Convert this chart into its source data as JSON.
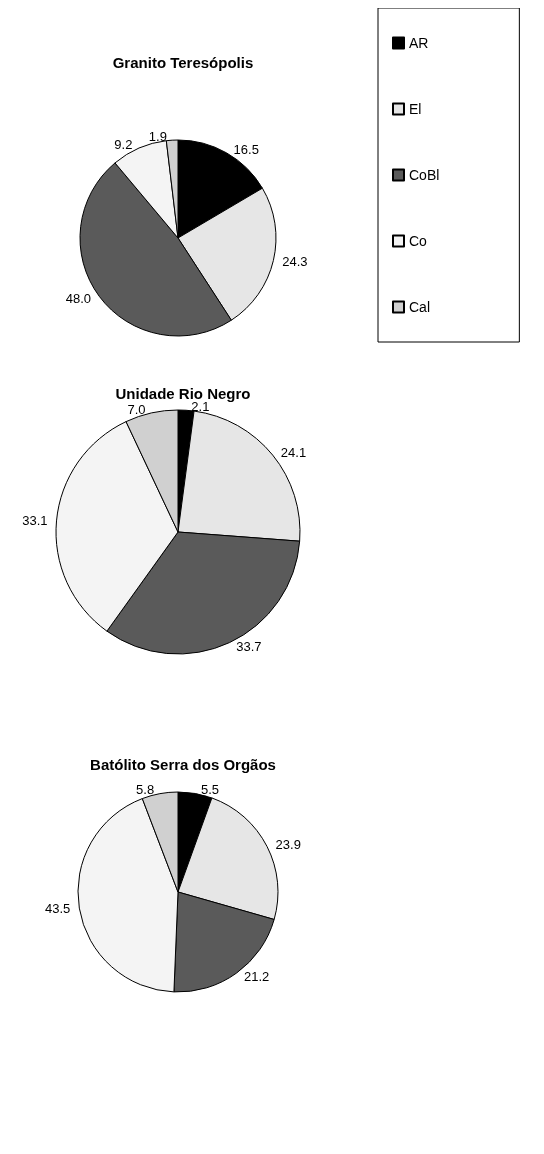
{
  "chart_data": [
    {
      "type": "pie",
      "title": "Granito Teresópolis",
      "categories": [
        "AR",
        "El",
        "CoBl",
        "Co",
        "Cal"
      ],
      "values": [
        16.5,
        24.3,
        48.0,
        9.2,
        1.9
      ],
      "value_labels": [
        "16.5",
        "24.3",
        "48.0",
        "9.2",
        "1.9"
      ],
      "colors": [
        "#000000",
        "#e6e6e6",
        "#5a5a5a",
        "#f4f4f4",
        "#d0d0d0"
      ],
      "legend": "right"
    },
    {
      "type": "pie",
      "title": "Unidade Rio Negro",
      "categories": [
        null,
        null,
        null,
        null,
        null
      ],
      "values": [
        2.1,
        24.1,
        33.7,
        33.1,
        7.0
      ],
      "value_labels": [
        "2.1",
        "24.1",
        "33.7",
        "33.1",
        "7.0"
      ],
      "colors": [
        "#000000",
        "#e6e6e6",
        "#5a5a5a",
        "#f4f4f4",
        "#d0d0d0"
      ]
    },
    {
      "type": "pie",
      "title": "Batólito Serra dos Orgãos",
      "categories": [
        null,
        null,
        null,
        null,
        null
      ],
      "values": [
        5.5,
        23.9,
        21.2,
        43.5,
        5.8
      ],
      "value_labels": [
        "5.5",
        "23.9",
        "21.2",
        "43.5",
        "5.8"
      ],
      "colors": [
        "#000000",
        "#e6e6e6",
        "#5a5a5a",
        "#f4f4f4",
        "#d0d0d0"
      ]
    }
  ]
}
